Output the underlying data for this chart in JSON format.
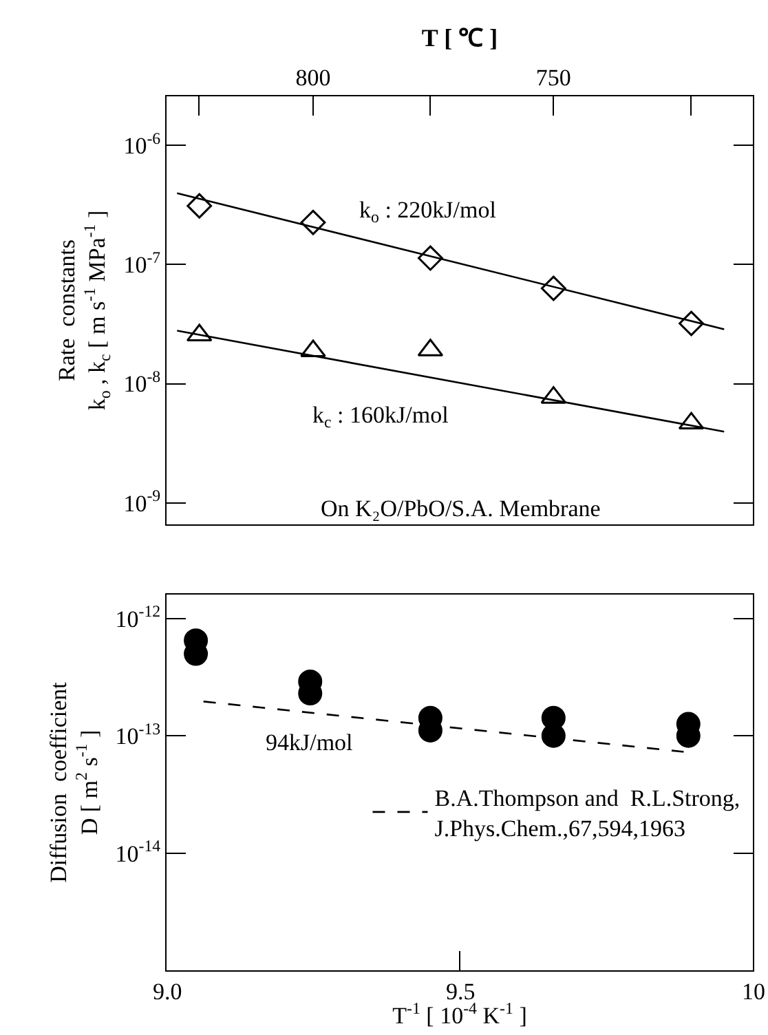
{
  "chart_data": [
    {
      "type": "scatter",
      "xlim": [
        9,
        10
      ],
      "x2lim": [
        830.5,
        708.5
      ],
      "x2label": "T [ ℃ ]",
      "x2ticks": [
        {
          "value": 823.7,
          "label": null
        },
        800,
        {
          "value": 775.6,
          "label": null
        },
        750,
        {
          "value": 721.4,
          "label": null
        }
      ],
      "ylabel": "Rate  constants\nk$_{o}$ , k$_{c}$ [ m s$^{-1}$ MPa$^{-1}$ ]",
      "log": "y",
      "ylim": [
        6.6e-10,
        2.57e-06
      ],
      "yticks": [
        {
          "value": 1e-09,
          "label": "10$^{-9}$"
        },
        {
          "value": 1e-08,
          "label": "10$^{-8}$"
        },
        {
          "value": 1e-07,
          "label": "10$^{-7}$"
        },
        {
          "value": 1e-06,
          "label": "10$^{-6}$"
        }
      ],
      "grid": false,
      "legend": false,
      "annotations": [
        "k$_{o}$ : 220kJ/mol",
        "k$_{c}$ : 160kJ/mol",
        "On K₂O/PbO/S.A. Membrane"
      ],
      "series": [
        {
          "type": "scatter",
          "marker": "diamond",
          "color": "#000000",
          "x": [
            9.056,
            9.25,
            9.45,
            9.66,
            9.895
          ],
          "values": [
            3.1e-07,
            2.25e-07,
            1.13e-07,
            6.3e-08,
            3.2e-08
          ]
        },
        {
          "type": "line",
          "marker": "none",
          "line_style": "solid",
          "color": "#000000",
          "x": [
            9.018,
            9.951
          ],
          "values": [
            3.96e-07,
            2.86e-08
          ]
        },
        {
          "type": "scatter",
          "marker": "triangle",
          "color": "#000000",
          "x": [
            9.056,
            9.25,
            9.45,
            9.66,
            9.895
          ],
          "values": [
            2.55e-08,
            1.88e-08,
            1.91e-08,
            7.65e-09,
            4.65e-09
          ]
        },
        {
          "type": "line",
          "marker": "none",
          "line_style": "solid",
          "color": "#000000",
          "x": [
            9.018,
            9.951
          ],
          "values": [
            2.78e-08,
            3.96e-09
          ]
        }
      ]
    },
    {
      "type": "scatter",
      "xlim": [
        9,
        10
      ],
      "xticks": [
        {
          "value": 9,
          "label": "9.0"
        },
        9.5,
        10
      ],
      "xlabel": "T$^{-1}$ [ 10$^{-4}$ K$^{-1}$ ]",
      "ylabel": "Diffusion  coefficient\nD [ m$^{2}$ s$^{-1}$ ]",
      "log": "y",
      "ylim": [
        1e-15,
        1.6e-12
      ],
      "yticks": [
        {
          "value": 1e-14,
          "label": "10$^{-14}$"
        },
        {
          "value": 1e-13,
          "label": "10$^{-13}$"
        },
        {
          "value": 1e-12,
          "label": "10$^{-12}$"
        }
      ],
      "grid": false,
      "legend": "right",
      "annotations": [
        "94kJ/mol"
      ],
      "series": [
        {
          "type": "scatter",
          "marker": "circle",
          "color": "#000000",
          "x": [
            9.05,
            9.05,
            9.245,
            9.245,
            9.45,
            9.45,
            9.66,
            9.66,
            9.89,
            9.89
          ],
          "values": [
            6.5e-13,
            5e-13,
            2.9e-13,
            2.3e-13,
            1.42e-13,
            1.11e-13,
            1.42e-13,
            1e-13,
            1.26e-13,
            1e-13
          ]
        },
        {
          "type": "line",
          "name": "B.A.Thompson and  R.L.Strong,\nJ.Phys.Chem.,67,594,1963",
          "marker": "none",
          "line_style": "dashed",
          "color": "#000000",
          "x": [
            9.063,
            9.882
          ],
          "values": [
            1.96e-13,
            7.3e-14
          ]
        }
      ]
    }
  ]
}
